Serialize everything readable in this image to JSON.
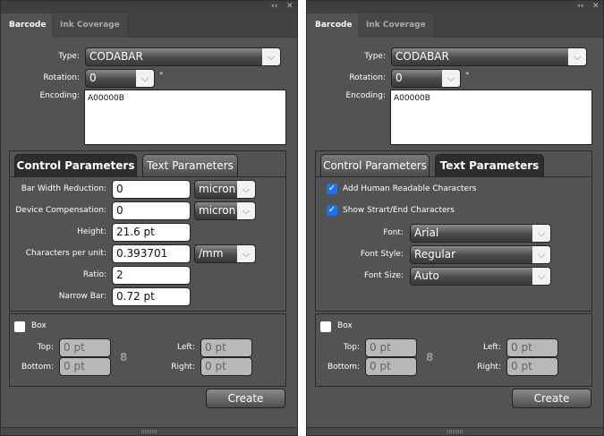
{
  "panels": [
    {
      "header": {
        "collapse_icon": "double-chevron-left-icon",
        "close_icon": "close-icon"
      },
      "tabs": [
        "Barcode",
        "Ink Coverage"
      ],
      "type": {
        "label": "Type:",
        "value": "CODABAR"
      },
      "rotation": {
        "label": "Rotation:",
        "value": "0",
        "unit": "°"
      },
      "encoding": {
        "label": "Encoding:",
        "value": "A00000B"
      },
      "subtabs": [
        "Control Parameters",
        "Text Parameters"
      ],
      "active_subtab": "Control Parameters",
      "control": {
        "bar_width_reduction": {
          "label": "Bar Width Reduction:",
          "value": "0",
          "unit": "micron"
        },
        "device_compensation": {
          "label": "Device Compensation:",
          "value": "0",
          "unit": "micron"
        },
        "height": {
          "label": "Height:",
          "value": "21.6 pt"
        },
        "characters_per_unit": {
          "label": "Characters per unit:",
          "value": "0.393701",
          "unit": "/mm"
        },
        "ratio": {
          "label": "Ratio:",
          "value": "2"
        },
        "narrow_bar": {
          "label": "Narrow Bar:",
          "value": "0.72 pt"
        }
      },
      "box": {
        "label": "Box",
        "checked": false,
        "top": {
          "label": "Top:",
          "value": "0 pt"
        },
        "bottom": {
          "label": "Bottom:",
          "value": "0 pt"
        },
        "left": {
          "label": "Left:",
          "value": "0 pt"
        },
        "right": {
          "label": "Right:",
          "value": "0 pt"
        }
      },
      "create": "Create"
    },
    {
      "header": {
        "collapse_icon": "double-chevron-left-icon",
        "close_icon": "close-icon"
      },
      "tabs": [
        "Barcode",
        "Ink Coverage"
      ],
      "type": {
        "label": "Type:",
        "value": "CODABAR"
      },
      "rotation": {
        "label": "Rotation:",
        "value": "0",
        "unit": "°"
      },
      "encoding": {
        "label": "Encoding:",
        "value": "A00000B"
      },
      "subtabs": [
        "Control Parameters",
        "Text Parameters"
      ],
      "active_subtab": "Text Parameters",
      "text": {
        "human_readable": {
          "label": "Add Human Readable Characters",
          "checked": true
        },
        "start_end": {
          "label": "Show Strart/End Characters",
          "checked": true
        },
        "font": {
          "label": "Font:",
          "value": "Arial"
        },
        "font_style": {
          "label": "Font Style:",
          "value": "Regular"
        },
        "font_size": {
          "label": "Font Size:",
          "value": "Auto"
        }
      },
      "box": {
        "label": "Box",
        "checked": false,
        "top": {
          "label": "Top:",
          "value": "0 pt"
        },
        "bottom": {
          "label": "Bottom:",
          "value": "0 pt"
        },
        "left": {
          "label": "Left:",
          "value": "0 pt"
        },
        "right": {
          "label": "Right:",
          "value": "0 pt"
        }
      },
      "create": "Create"
    }
  ],
  "colors": {
    "panel_bg": "#535353",
    "checkbox_checked": "#1a73e8"
  }
}
